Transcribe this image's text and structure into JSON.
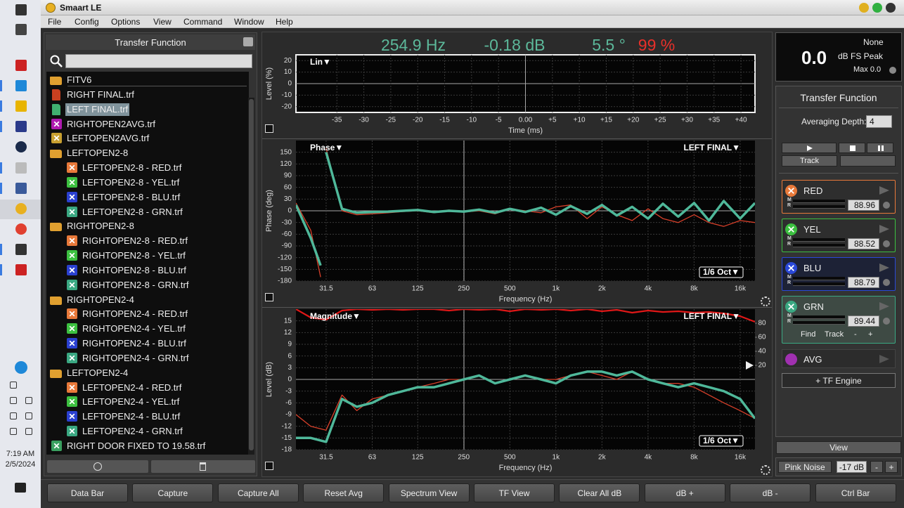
{
  "window": {
    "title": "Smaart LE"
  },
  "menu": [
    "File",
    "Config",
    "Options",
    "View",
    "Command",
    "Window",
    "Help"
  ],
  "taskbar": {
    "time": "7:19 AM",
    "date": "2/5/2024"
  },
  "browser": {
    "title": "Transfer Function",
    "items": [
      {
        "label": "FITV6",
        "icon": "folder",
        "indent": 0
      },
      {
        "label": "RIGHT FINAL.trf",
        "icon": "file",
        "color": "#c84020",
        "indent": 0
      },
      {
        "label": "LEFT FINAL.trf",
        "icon": "file",
        "color": "#40b070",
        "indent": 0,
        "selected": true
      },
      {
        "label": "RIGHTOPEN2AVG.trf",
        "icon": "x",
        "color": "#b01ab0",
        "indent": 0
      },
      {
        "label": "LEFTOPEN2AVG.trf",
        "icon": "x",
        "color": "#c8a030",
        "indent": 0
      },
      {
        "label": "LEFTOPEN2-8",
        "icon": "folder",
        "indent": 0
      },
      {
        "label": "LEFTOPEN2-8 - RED.trf",
        "icon": "x",
        "color": "#e8793a",
        "indent": 1
      },
      {
        "label": "LEFTOPEN2-8 - YEL.trf",
        "icon": "x",
        "color": "#3cc040",
        "indent": 1
      },
      {
        "label": "LEFTOPEN2-8 - BLU.trf",
        "icon": "x",
        "color": "#2a40d0",
        "indent": 1
      },
      {
        "label": "LEFTOPEN2-8 - GRN.trf",
        "icon": "x",
        "color": "#3aa882",
        "indent": 1
      },
      {
        "label": "RIGHTOPEN2-8",
        "icon": "folder",
        "indent": 0
      },
      {
        "label": "RIGHTOPEN2-8 - RED.trf",
        "icon": "x",
        "color": "#e8793a",
        "indent": 1
      },
      {
        "label": "RIGHTOPEN2-8 - YEL.trf",
        "icon": "x",
        "color": "#3cc040",
        "indent": 1
      },
      {
        "label": "RIGHTOPEN2-8 - BLU.trf",
        "icon": "x",
        "color": "#2a40d0",
        "indent": 1
      },
      {
        "label": "RIGHTOPEN2-8 - GRN.trf",
        "icon": "x",
        "color": "#3aa882",
        "indent": 1
      },
      {
        "label": "RIGHTOPEN2-4",
        "icon": "folder",
        "indent": 0
      },
      {
        "label": "RIGHTOPEN2-4 - RED.trf",
        "icon": "x",
        "color": "#e8793a",
        "indent": 1
      },
      {
        "label": "RIGHTOPEN2-4 - YEL.trf",
        "icon": "x",
        "color": "#3cc040",
        "indent": 1
      },
      {
        "label": "RIGHTOPEN2-4 - BLU.trf",
        "icon": "x",
        "color": "#2a40d0",
        "indent": 1
      },
      {
        "label": "RIGHTOPEN2-4 - GRN.trf",
        "icon": "x",
        "color": "#3aa882",
        "indent": 1
      },
      {
        "label": "LEFTOPEN2-4",
        "icon": "folder",
        "indent": 0
      },
      {
        "label": "LEFTOPEN2-4 - RED.trf",
        "icon": "x",
        "color": "#e8793a",
        "indent": 1
      },
      {
        "label": "LEFTOPEN2-4 - YEL.trf",
        "icon": "x",
        "color": "#3cc040",
        "indent": 1
      },
      {
        "label": "LEFTOPEN2-4 - BLU.trf",
        "icon": "x",
        "color": "#2a40d0",
        "indent": 1
      },
      {
        "label": "LEFTOPEN2-4 - GRN.trf",
        "icon": "x",
        "color": "#3aa882",
        "indent": 1
      },
      {
        "label": "RIGHT DOOR FIXED TO 19.58.trf",
        "icon": "x",
        "color": "#3aa060",
        "indent": 0
      }
    ]
  },
  "readout": {
    "frequency": "254.9 Hz",
    "magnitude": "-0.18 dB",
    "phase": "5.5 °",
    "coherence": "99 %"
  },
  "chart_data": [
    {
      "type": "line",
      "mode": "Lin▼",
      "ylabel": "Level (%)",
      "xlabel": "Time (ms)",
      "grid": true,
      "xlim": [
        -42.6,
        42.6
      ],
      "xticks": [
        -35,
        -30,
        -25,
        -20,
        -15,
        -10,
        -5,
        {
          "value": 0,
          "label": "0.00"
        },
        {
          "value": 5,
          "label": "+5"
        },
        {
          "value": 10,
          "label": "+10"
        },
        {
          "value": 15,
          "label": "+15"
        },
        {
          "value": 20,
          "label": "+20"
        },
        {
          "value": 25,
          "label": "+25"
        },
        {
          "value": 30,
          "label": "+30"
        },
        {
          "value": 35,
          "label": "+35"
        },
        {
          "value": 40,
          "label": "+40"
        }
      ],
      "ylim": [
        -25,
        25
      ],
      "yticks": [
        20,
        10,
        0,
        -10,
        -20
      ]
    },
    {
      "type": "line",
      "mode": "Phase▼",
      "source": "LEFT FINAL▼",
      "resolution": "1/6 Oct▼",
      "ylabel": "Phase (deg)",
      "xlabel": "Frequency (Hz)",
      "grid": true,
      "xscale": "log",
      "xlim": [
        20,
        20000
      ],
      "xticks": [
        31.5,
        63,
        125,
        250,
        500,
        {
          "value": 1000,
          "label": "1k"
        },
        {
          "value": 2000,
          "label": "2k"
        },
        {
          "value": 4000,
          "label": "4k"
        },
        {
          "value": 8000,
          "label": "8k"
        },
        {
          "value": 16000,
          "label": "16k"
        }
      ],
      "ylim": [
        -180,
        180
      ],
      "yticks": [
        150,
        120,
        90,
        60,
        30,
        0,
        -30,
        -60,
        -90,
        -120,
        -150,
        -180
      ],
      "x": [
        20,
        25,
        29,
        30,
        31.5,
        40,
        50,
        63,
        80,
        100,
        125,
        160,
        200,
        250,
        315,
        400,
        500,
        630,
        800,
        1000,
        1250,
        1600,
        2000,
        2500,
        3150,
        4000,
        5000,
        6300,
        8000,
        10000,
        12500,
        16000,
        20000
      ],
      "series": [
        {
          "color": "#d8402a",
          "width": 1.3,
          "values": [
            20,
            -50,
            -170,
            null,
            160,
            0,
            -10,
            -8,
            -5,
            -2,
            0,
            -5,
            2,
            -3,
            0,
            -8,
            5,
            0,
            -5,
            10,
            15,
            -20,
            10,
            -10,
            -25,
            5,
            -20,
            -30,
            -10,
            -30,
            -40,
            -25,
            -30
          ]
        },
        {
          "color": "#4fb89a",
          "width": 3.5,
          "values": [
            15,
            -70,
            -140,
            null,
            150,
            5,
            -5,
            -3,
            -2,
            0,
            2,
            -3,
            0,
            -2,
            3,
            -5,
            5,
            -3,
            8,
            -10,
            12,
            -8,
            15,
            -12,
            10,
            -20,
            18,
            -15,
            20,
            -25,
            25,
            -20,
            20
          ]
        }
      ]
    },
    {
      "type": "line",
      "mode": "Magnitude▼",
      "source": "LEFT FINAL▼",
      "resolution": "1/6 Oct▼",
      "ylabel": "Level (dB)",
      "xlabel": "Frequency (Hz)",
      "grid": true,
      "xscale": "log",
      "xlim": [
        20,
        20000
      ],
      "xticks": [
        31.5,
        63,
        125,
        250,
        500,
        {
          "value": 1000,
          "label": "1k"
        },
        {
          "value": 2000,
          "label": "2k"
        },
        {
          "value": 4000,
          "label": "4k"
        },
        {
          "value": 8000,
          "label": "8k"
        },
        {
          "value": 16000,
          "label": "16k"
        }
      ],
      "ylim": [
        -18,
        18
      ],
      "yticks": [
        15,
        12,
        9,
        6,
        3,
        0,
        -3,
        -6,
        -9,
        -12,
        -15,
        -18
      ],
      "y2lim": [
        -100,
        100
      ],
      "y2ticks": [
        80,
        60,
        40,
        20
      ],
      "x": [
        20,
        25,
        31.5,
        40,
        50,
        63,
        80,
        100,
        125,
        160,
        200,
        250,
        315,
        400,
        500,
        630,
        800,
        1000,
        1250,
        1600,
        2000,
        2500,
        3150,
        4000,
        5000,
        6300,
        8000,
        10000,
        12500,
        16000,
        20000
      ],
      "series": [
        {
          "color": "#e01818",
          "width": 2.2,
          "axis": "y2",
          "values": [
            100,
            88,
            85,
            98,
            100,
            99,
            100,
            99,
            100,
            100,
            98,
            100,
            99,
            100,
            97,
            100,
            99,
            100,
            98,
            100,
            97,
            99,
            95,
            98,
            96,
            97,
            95,
            96,
            94,
            90,
            82
          ]
        },
        {
          "color": "#d8402a",
          "width": 1.3,
          "values": [
            -9,
            -12,
            -13,
            -4,
            -8,
            -5,
            -4,
            -3,
            -2,
            -1,
            0,
            0,
            1,
            -1,
            0,
            1,
            0,
            0,
            1,
            2,
            1,
            0,
            2,
            0,
            -1,
            -1,
            -2,
            -4,
            -6,
            -8,
            -10
          ]
        },
        {
          "color": "#4fb89a",
          "width": 3.5,
          "values": [
            -15,
            -15,
            -16,
            -5,
            -7,
            -6,
            -4,
            -3,
            -2,
            -2,
            -1,
            0,
            1,
            -1,
            0,
            1,
            0,
            -1,
            1,
            2,
            2,
            1,
            2,
            0,
            -1,
            -2,
            -1,
            -2,
            -3,
            -5,
            -10
          ]
        }
      ]
    }
  ],
  "meter": {
    "source": "None",
    "value": "0.0",
    "mode": "dB FS Peak",
    "max": "Max 0.0"
  },
  "tf_panel": {
    "title": "Transfer Function",
    "averaging_label": "Averaging Depth:",
    "averaging_value": "4",
    "track": "Track",
    "meter_labels": [
      "M",
      "R"
    ],
    "engines": [
      {
        "name": "RED",
        "delay": "88.96",
        "color": "#e8793a"
      },
      {
        "name": "YEL",
        "delay": "88.52",
        "color": "#3cc040"
      },
      {
        "name": "BLU",
        "delay": "88.79",
        "color": "#2a48d8"
      },
      {
        "name": "GRN",
        "delay": "89.44",
        "color": "#3aa882"
      }
    ],
    "engine_controls": [
      "Find",
      "Track",
      "-",
      "+"
    ],
    "average": "AVG",
    "add_engine": "+ TF Engine"
  },
  "view": "View",
  "generator": {
    "signal": "Pink Noise",
    "level": "-17 dB",
    "down": "-",
    "up": "+"
  },
  "toolbar": [
    "Data Bar",
    "Capture",
    "Capture All",
    "Reset Avg",
    "Spectrum View",
    "TF View",
    "Clear All dB",
    "dB +",
    "dB -",
    "Ctrl Bar"
  ]
}
